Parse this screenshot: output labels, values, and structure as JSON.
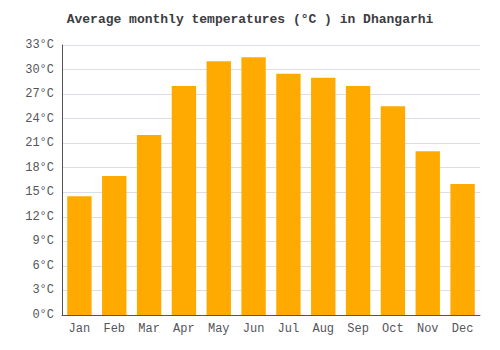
{
  "chart_data": {
    "type": "bar",
    "title": "Average monthly temperatures (°C ) in Dhangarhi",
    "categories": [
      "Jan",
      "Feb",
      "Mar",
      "Apr",
      "May",
      "Jun",
      "Jul",
      "Aug",
      "Sep",
      "Oct",
      "Nov",
      "Dec"
    ],
    "values": [
      14.5,
      17.0,
      22.0,
      28.0,
      31.0,
      31.5,
      29.5,
      29.0,
      28.0,
      25.5,
      20.0,
      16.0
    ],
    "color": "#FFAA00",
    "ylim": [
      0,
      33
    ],
    "yticks": [
      {
        "value": 0,
        "label": "0°C"
      },
      {
        "value": 3,
        "label": "3°C"
      },
      {
        "value": 6,
        "label": "6°C"
      },
      {
        "value": 9,
        "label": "9°C"
      },
      {
        "value": 12,
        "label": "12°C"
      },
      {
        "value": 15,
        "label": "15°C"
      },
      {
        "value": 18,
        "label": "18°C"
      },
      {
        "value": 21,
        "label": "21°C"
      },
      {
        "value": 24,
        "label": "24°C"
      },
      {
        "value": 27,
        "label": "27°C"
      },
      {
        "value": 30,
        "label": "30°C"
      },
      {
        "value": 33,
        "label": "33°C"
      }
    ],
    "grid": true
  }
}
